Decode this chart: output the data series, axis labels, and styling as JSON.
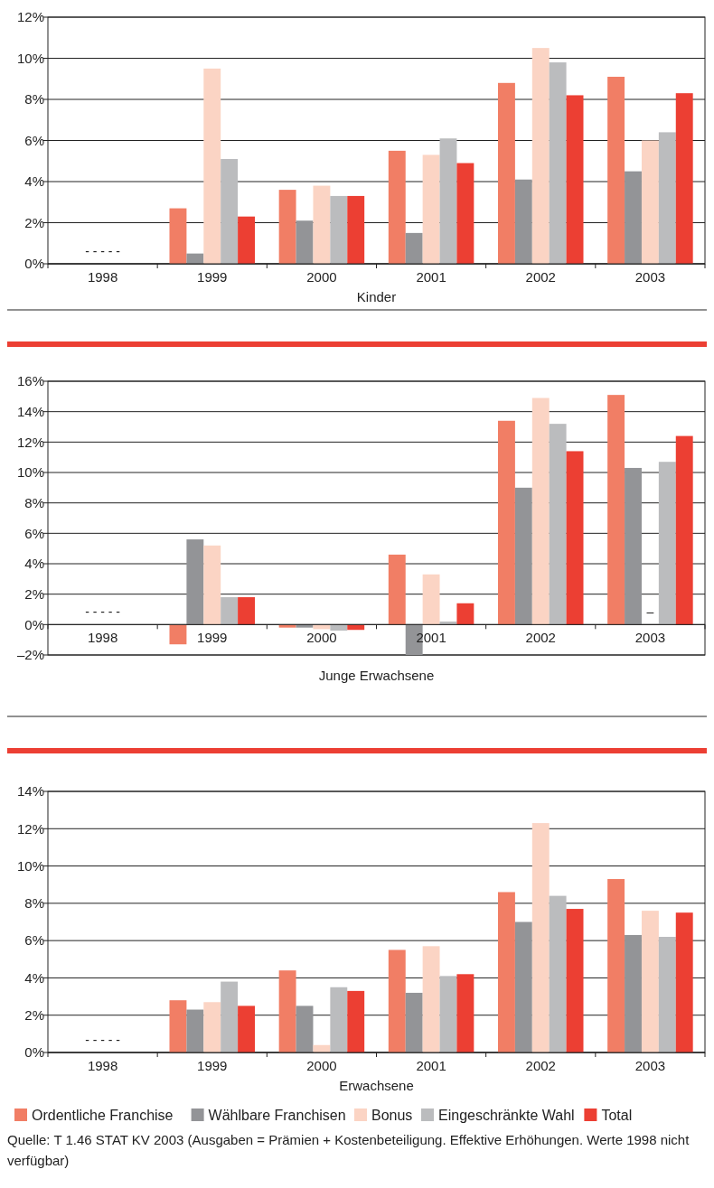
{
  "chart_data": [
    {
      "type": "bar",
      "xlabel": "Kinder",
      "categories": [
        "1998",
        "1999",
        "2000",
        "2001",
        "2002",
        "2003"
      ],
      "ylim": [
        0,
        12
      ],
      "yticks": [
        {
          "value": 0,
          "label": "0%"
        },
        {
          "value": 2,
          "label": "2%"
        },
        {
          "value": 4,
          "label": "4%"
        },
        {
          "value": 6,
          "label": "6%"
        },
        {
          "value": 8,
          "label": "8%"
        },
        {
          "value": 10,
          "label": "10%"
        },
        {
          "value": 12,
          "label": "12%"
        }
      ],
      "grid": "y",
      "legend": false,
      "series": [
        {
          "color": "#f17e65",
          "values": [
            null,
            2.7,
            3.6,
            5.5,
            8.8,
            9.1
          ]
        },
        {
          "color": "#939497",
          "values": [
            null,
            0.5,
            2.1,
            1.5,
            4.1,
            4.5
          ]
        },
        {
          "color": "#fbd4c4",
          "values": [
            null,
            9.5,
            3.8,
            5.3,
            10.5,
            6.0
          ]
        },
        {
          "color": "#bbbcbe",
          "values": [
            null,
            5.1,
            3.3,
            6.1,
            9.8,
            6.4
          ]
        },
        {
          "color": "#ec3f33",
          "values": [
            null,
            2.3,
            3.3,
            4.9,
            8.2,
            8.3
          ]
        }
      ],
      "annotations": [
        "- - - - -"
      ]
    },
    {
      "type": "bar",
      "xlabel": "Junge Erwachsene",
      "categories": [
        "1998",
        "1999",
        "2000",
        "2001",
        "2002",
        "2003"
      ],
      "ylim": [
        -2,
        16
      ],
      "yticks": [
        {
          "value": -2,
          "label": "–2%"
        },
        {
          "value": 0,
          "label": "0%"
        },
        {
          "value": 2,
          "label": "2%"
        },
        {
          "value": 4,
          "label": "4%"
        },
        {
          "value": 6,
          "label": "6%"
        },
        {
          "value": 8,
          "label": "8%"
        },
        {
          "value": 10,
          "label": "10%"
        },
        {
          "value": 12,
          "label": "12%"
        },
        {
          "value": 14,
          "label": "14%"
        },
        {
          "value": 16,
          "label": "16%"
        }
      ],
      "grid": "y",
      "legend": false,
      "series": [
        {
          "color": "#f17e65",
          "values": [
            null,
            -1.3,
            -0.2,
            4.6,
            13.4,
            15.1
          ]
        },
        {
          "color": "#939497",
          "values": [
            null,
            5.6,
            -0.2,
            -2.0,
            9.0,
            10.3
          ]
        },
        {
          "color": "#fbd4c4",
          "values": [
            null,
            5.2,
            -0.3,
            3.3,
            14.9,
            null
          ]
        },
        {
          "color": "#bbbcbe",
          "values": [
            null,
            1.8,
            -0.4,
            0.2,
            13.2,
            10.7
          ]
        },
        {
          "color": "#ec3f33",
          "values": [
            null,
            1.8,
            -0.35,
            1.4,
            11.4,
            12.4
          ]
        }
      ],
      "annotations": [
        "- - - - -",
        "–"
      ]
    },
    {
      "type": "bar",
      "xlabel": "Erwachsene",
      "categories": [
        "1998",
        "1999",
        "2000",
        "2001",
        "2002",
        "2003"
      ],
      "ylim": [
        0,
        14
      ],
      "yticks": [
        {
          "value": 0,
          "label": "0%"
        },
        {
          "value": 2,
          "label": "2%"
        },
        {
          "value": 4,
          "label": "4%"
        },
        {
          "value": 6,
          "label": "6%"
        },
        {
          "value": 8,
          "label": "8%"
        },
        {
          "value": 10,
          "label": "10%"
        },
        {
          "value": 12,
          "label": "12%"
        },
        {
          "value": 14,
          "label": "14%"
        }
      ],
      "grid": "y",
      "legend": "bottom",
      "series": [
        {
          "name": "Ordentliche Franchise",
          "color": "#f17e65",
          "values": [
            null,
            2.8,
            4.4,
            5.5,
            8.6,
            9.3
          ]
        },
        {
          "name": "Wählbare Franchisen",
          "color": "#939497",
          "values": [
            null,
            2.3,
            2.5,
            3.2,
            7.0,
            6.3
          ]
        },
        {
          "name": "Bonus",
          "color": "#fbd4c4",
          "values": [
            null,
            2.7,
            0.4,
            5.7,
            12.3,
            7.6
          ]
        },
        {
          "name": "Eingeschränkte Wahl",
          "color": "#bbbcbe",
          "values": [
            null,
            3.8,
            3.5,
            4.1,
            8.4,
            6.2
          ]
        },
        {
          "name": "Total",
          "color": "#ec3f33",
          "values": [
            null,
            2.5,
            3.3,
            4.2,
            7.7,
            7.5
          ]
        }
      ],
      "annotations": [
        "- - - - -",
        "Quelle: T 1.46  STAT KV 2003  (Ausgaben = Prämien + Kostenbeteiligung. Effektive Erhöhungen. Werte 1998 nicht verfügbar)"
      ]
    }
  ]
}
